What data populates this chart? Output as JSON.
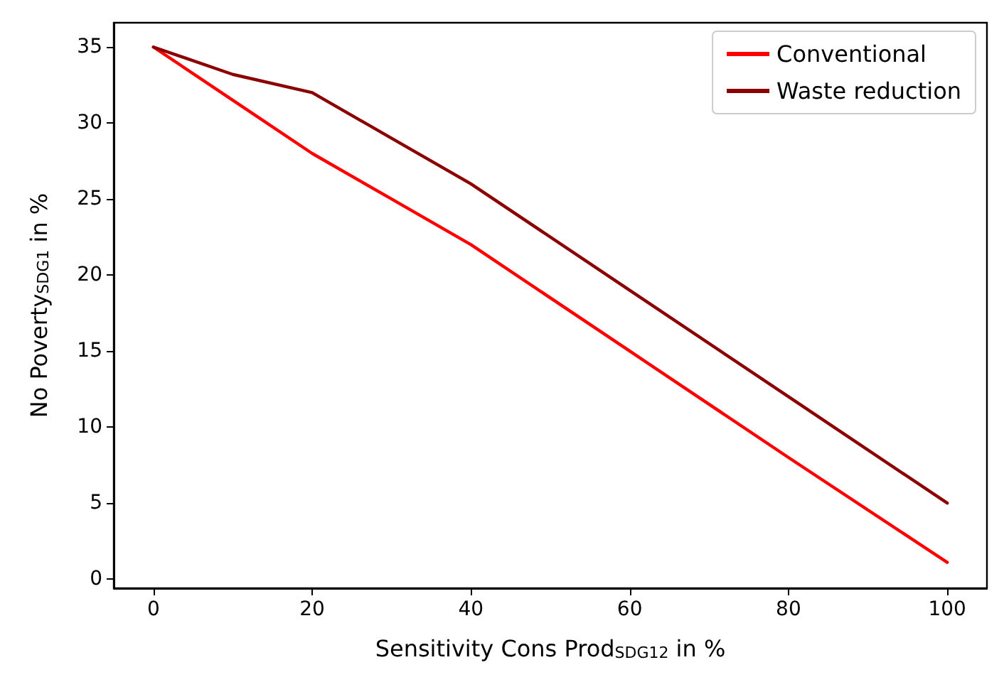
{
  "chart_data": {
    "type": "line",
    "xlabel": "Sensitivity Cons Prod$_{SDG12}$ in %",
    "ylabel": "No Poverty$_{SDG1}$ in %",
    "x": [
      0,
      10,
      20,
      30,
      40,
      60,
      80,
      100
    ],
    "series": [
      {
        "name": "Conventional",
        "color": "#ff0000",
        "values": [
          35,
          31.5,
          28,
          25,
          22,
          15,
          8,
          1.1
        ]
      },
      {
        "name": "Waste reduction",
        "color": "#8b0000",
        "values": [
          35,
          33.2,
          32,
          29,
          26,
          19,
          12,
          5
        ]
      }
    ],
    "xlim": [
      -5,
      105
    ],
    "ylim": [
      -0.6,
      36.6
    ],
    "xticks": [
      0,
      20,
      40,
      60,
      80,
      100
    ],
    "yticks": [
      0,
      5,
      10,
      15,
      20,
      25,
      30,
      35
    ],
    "grid": false,
    "legend": "top right",
    "marker": "none",
    "line_style": "solid"
  }
}
